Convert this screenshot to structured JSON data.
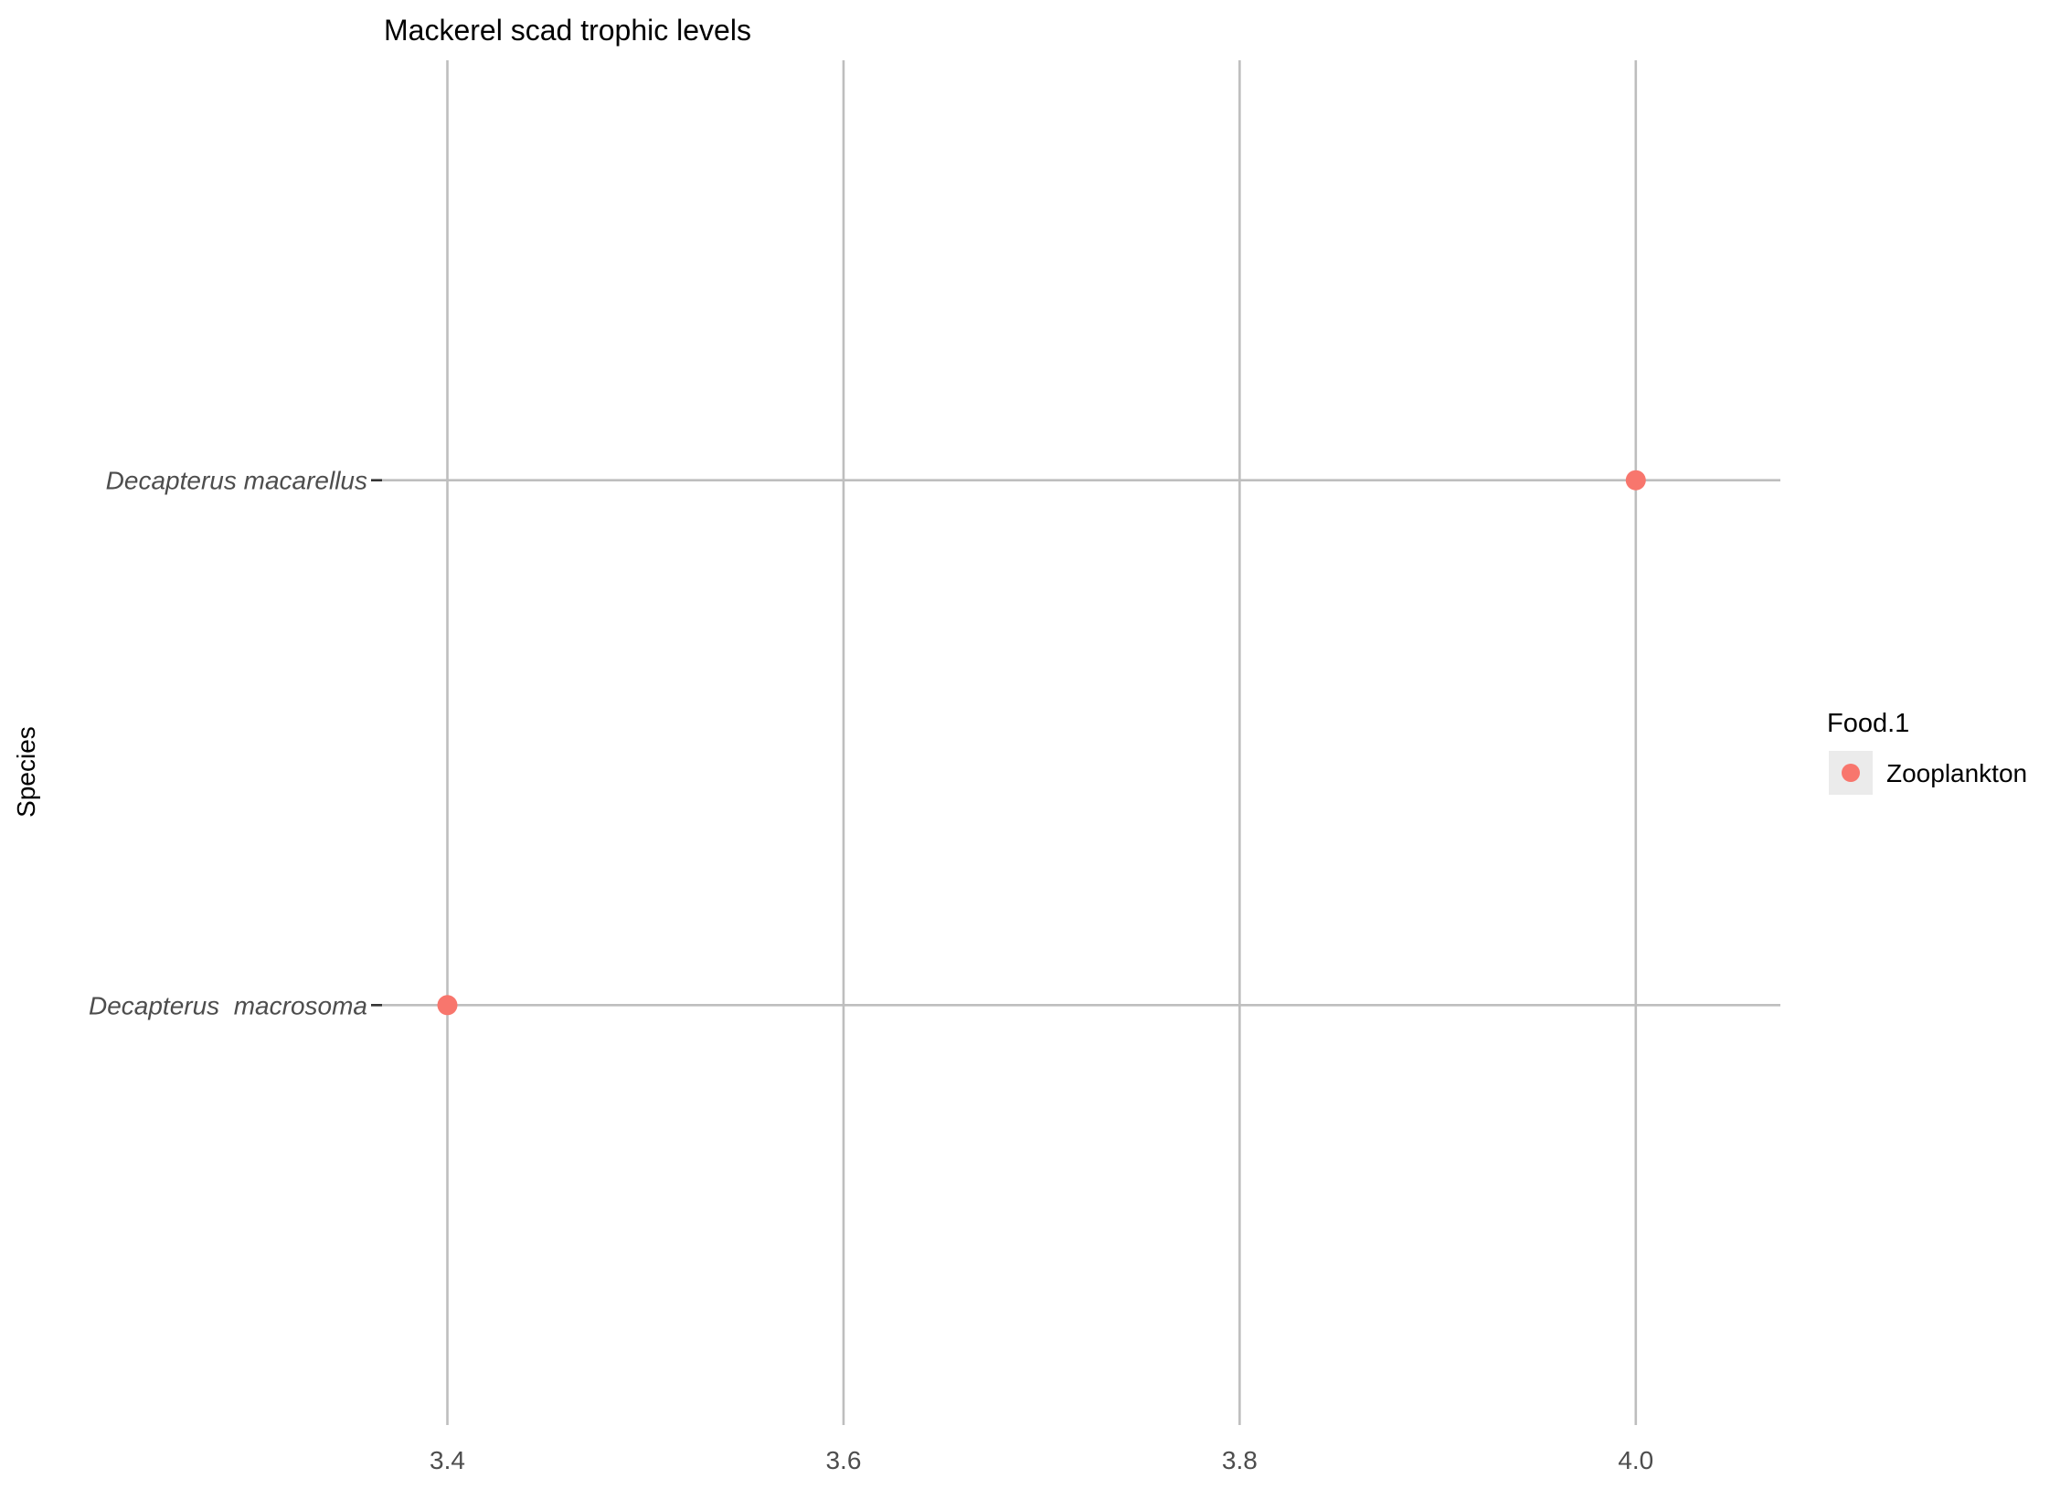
{
  "chart_data": {
    "type": "scatter",
    "title": "Mackerel scad trophic levels",
    "xlabel": "",
    "ylabel": "Species",
    "xlim": [
      3.367,
      4.073
    ],
    "x_ticks": [
      "3.4",
      "3.6",
      "3.8",
      "4.0"
    ],
    "x_tick_values": [
      3.4,
      3.6,
      3.8,
      4.0
    ],
    "categories": [
      "Decapterus macarellus",
      "Decapterus  macrosoma"
    ],
    "grid": true,
    "legend": {
      "title": "Food.1",
      "position": "right",
      "entries": [
        {
          "label": "Zooplankton",
          "color": "#F8766D"
        }
      ]
    },
    "series": [
      {
        "name": "Zooplankton",
        "color": "#F8766D",
        "points": [
          {
            "species": "Decapterus macarellus",
            "x": 4.0
          },
          {
            "species": "Decapterus  macrosoma",
            "x": 3.4
          }
        ]
      }
    ]
  }
}
